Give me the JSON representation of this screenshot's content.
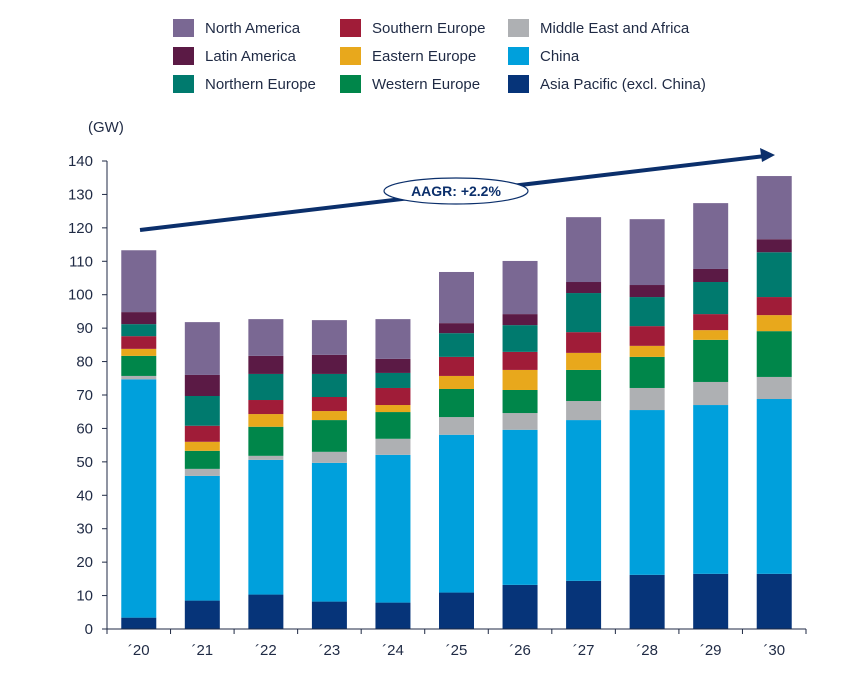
{
  "chart_data": {
    "type": "bar",
    "stacked": true,
    "ylabel": "(GW)",
    "ylim": [
      0,
      140
    ],
    "yticks": [
      0,
      10,
      20,
      30,
      40,
      50,
      60,
      70,
      80,
      90,
      100,
      110,
      120,
      130,
      140
    ],
    "grid": false,
    "legend_placement": "top",
    "categories": [
      "´20",
      "´21",
      "´22",
      "´23",
      "´24",
      "´25",
      "´26",
      "´27",
      "´28",
      "´29",
      "´30"
    ],
    "series": [
      {
        "name": "Asia Pacific (excl. China)",
        "color": "#063479",
        "values": [
          3.4,
          8.5,
          10.3,
          8.2,
          7.9,
          10.9,
          13.2,
          14.4,
          16.2,
          16.5,
          16.5
        ]
      },
      {
        "name": "China",
        "color": "#00a0dc",
        "values": [
          71.3,
          37.3,
          40.3,
          41.5,
          44.2,
          47.2,
          46.4,
          48.1,
          49.3,
          50.5,
          52.3
        ]
      },
      {
        "name": "Middle East and Africa",
        "color": "#aeb0b3",
        "values": [
          1.0,
          2.1,
          1.2,
          3.3,
          4.8,
          5.3,
          5.0,
          5.7,
          6.6,
          6.9,
          6.6
        ]
      },
      {
        "name": "Western Europe",
        "color": "#00864a",
        "values": [
          6.0,
          5.4,
          8.7,
          9.5,
          8.0,
          8.4,
          6.9,
          9.3,
          9.3,
          12.6,
          13.7
        ]
      },
      {
        "name": "Eastern Europe",
        "color": "#e8a81c",
        "values": [
          2.1,
          2.7,
          3.8,
          2.7,
          2.1,
          3.9,
          6.0,
          5.1,
          3.3,
          2.9,
          4.8
        ]
      },
      {
        "name": "Southern Europe",
        "color": "#a01c38",
        "values": [
          3.8,
          4.8,
          4.2,
          4.2,
          5.1,
          5.7,
          5.4,
          6.2,
          5.9,
          4.8,
          5.4
        ]
      },
      {
        "name": "Northern Europe",
        "color": "#007a6e",
        "values": [
          3.6,
          8.9,
          7.8,
          6.9,
          4.5,
          7.1,
          8.0,
          11.7,
          8.7,
          9.6,
          13.4
        ]
      },
      {
        "name": "Latin America",
        "color": "#5b1a45",
        "values": [
          3.6,
          6.3,
          5.4,
          5.7,
          4.2,
          3.0,
          3.3,
          3.3,
          3.6,
          3.9,
          3.9
        ]
      },
      {
        "name": "North America",
        "color": "#7a6893",
        "values": [
          18.5,
          15.8,
          11.0,
          10.4,
          11.9,
          15.3,
          15.9,
          19.4,
          19.7,
          19.7,
          18.9
        ]
      }
    ],
    "legend_order": [
      "North America",
      "Southern Europe",
      "Middle East and Africa",
      "Latin America",
      "Eastern Europe",
      "China",
      "Northern Europe",
      "Western Europe",
      "Asia Pacific (excl. China)"
    ],
    "annotation": {
      "text": "AAGR: +2.2%",
      "color": "#0b2f6b"
    }
  }
}
